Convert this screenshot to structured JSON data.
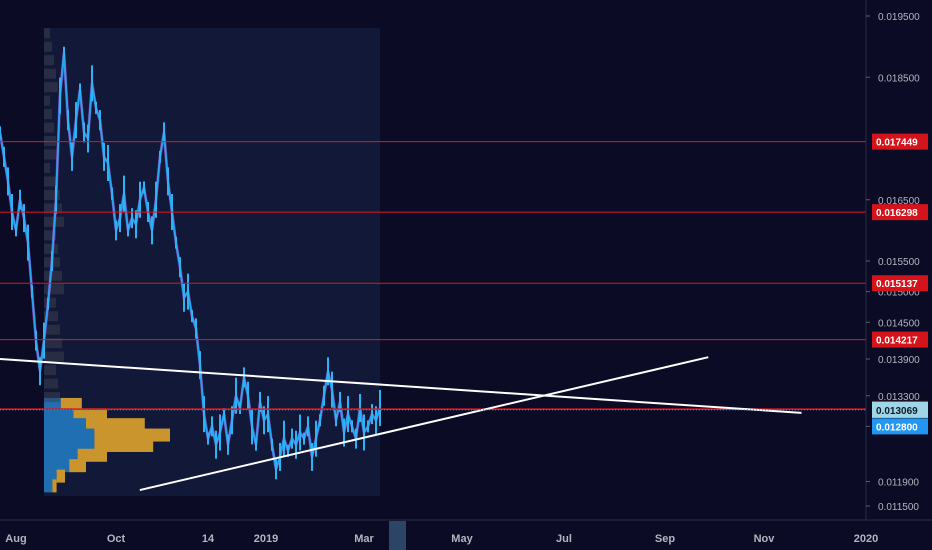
{
  "chart_data": {
    "type": "line",
    "price_axis": {
      "ticks": [
        "0.019500",
        "0.018500",
        "0.016500",
        "0.015500",
        "0.015000",
        "0.014500",
        "0.013900",
        "0.013300",
        "0.012800",
        "0.011900",
        "0.011500"
      ],
      "ylim": [
        0.0113,
        0.0199
      ]
    },
    "time_axis": {
      "labels": [
        "Aug",
        "Oct",
        "14",
        "2019",
        "Mar",
        "May",
        "Jul",
        "Sep",
        "Nov",
        "2020"
      ]
    },
    "levels": [
      {
        "label": "0.017449",
        "value": 0.017449,
        "color": "#e5141b"
      },
      {
        "label": "0.016298",
        "value": 0.016298,
        "color": "#e5141b"
      },
      {
        "label": "0.015137",
        "value": 0.015137,
        "color": "#e5141b"
      },
      {
        "label": "0.014217",
        "value": 0.014217,
        "color": "#e5141b"
      },
      {
        "label": "0.013085",
        "value": 0.013085,
        "color": "#e5141b"
      },
      {
        "label": "0.013075",
        "value": 0.013075,
        "color": "#e5141b"
      }
    ],
    "current_price": {
      "label": "0.013069",
      "value": 0.013069,
      "color": "#9fd6e6"
    },
    "crosshair_price": {
      "label": "0.012800",
      "value": 0.0128,
      "color": "#2196f3"
    },
    "series": [
      {
        "values": [
          0.0176,
          0.0172,
          0.0168,
          0.0163,
          0.016,
          0.0165,
          0.0162,
          0.0158,
          0.015,
          0.0142,
          0.0137,
          0.0142,
          0.0148,
          0.0155,
          0.0165,
          0.0182,
          0.0189,
          0.0178,
          0.0172,
          0.0178,
          0.0183,
          0.0176,
          0.0175,
          0.0184,
          0.018,
          0.0178,
          0.0172,
          0.0171,
          0.0166,
          0.016,
          0.0162,
          0.0166,
          0.016,
          0.0162,
          0.0161,
          0.0165,
          0.0167,
          0.0163,
          0.016,
          0.0165,
          0.0172,
          0.0176,
          0.0168,
          0.0163,
          0.0158,
          0.0154,
          0.0149,
          0.015,
          0.0146,
          0.0144,
          0.0138,
          0.013,
          0.0126,
          0.0128,
          0.0125,
          0.0127,
          0.013,
          0.0125,
          0.0129,
          0.0133,
          0.0131,
          0.0136,
          0.0133,
          0.0128,
          0.0125,
          0.0132,
          0.0129,
          0.013,
          0.0125,
          0.0121,
          0.0123,
          0.0126,
          0.0124,
          0.0126,
          0.0125,
          0.0127,
          0.0126,
          0.0128,
          0.0123,
          0.0126,
          0.0129,
          0.0133,
          0.0137,
          0.0134,
          0.0129,
          0.0132,
          0.0127,
          0.013,
          0.0128,
          0.0126,
          0.0131,
          0.0127,
          0.0128,
          0.013,
          0.0129,
          0.0131
        ]
      }
    ],
    "volume_profile_bins": [
      {
        "price": 0.01315,
        "buy": 4,
        "sell": 5
      },
      {
        "price": 0.01298,
        "buy": 7,
        "sell": 8
      },
      {
        "price": 0.01282,
        "buy": 10,
        "sell": 14
      },
      {
        "price": 0.01265,
        "buy": 12,
        "sell": 18
      },
      {
        "price": 0.01248,
        "buy": 12,
        "sell": 14
      },
      {
        "price": 0.01232,
        "buy": 8,
        "sell": 7
      },
      {
        "price": 0.01215,
        "buy": 6,
        "sell": 4
      },
      {
        "price": 0.01198,
        "buy": 3,
        "sell": 2
      },
      {
        "price": 0.01182,
        "buy": 2,
        "sell": 1
      }
    ],
    "trendlines": [
      {
        "from": [
          0.0,
          0.0139
        ],
        "to": [
          0.86,
          0.01302
        ]
      },
      {
        "from": [
          0.15,
          0.01176
        ],
        "to": [
          0.76,
          0.01393
        ]
      }
    ],
    "grid": false
  }
}
